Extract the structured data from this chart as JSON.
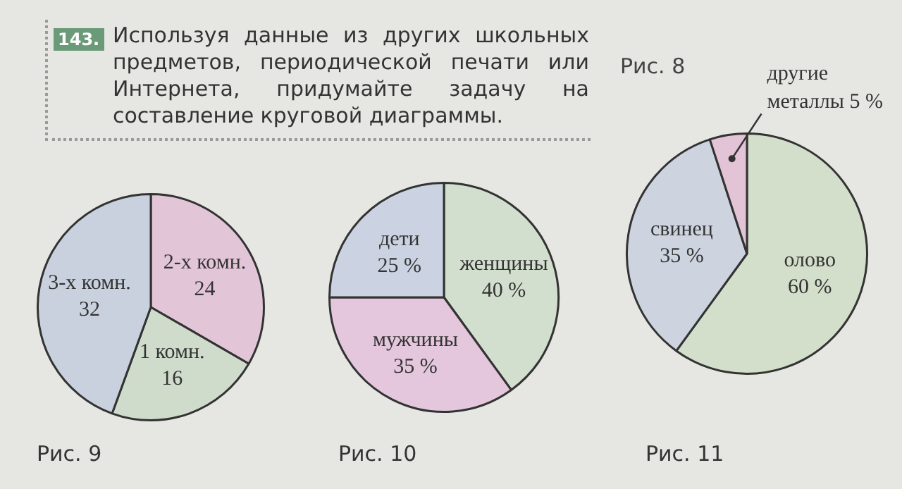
{
  "chart_data": [
    {
      "type": "other",
      "annotations": [
        "143.",
        "Используя данные из других школьных предметов, периодической печати или Интернета, придумайте задачу на составление круговой диаграммы.",
        "Рис. 8"
      ]
    },
    {
      "type": "pie",
      "title": "Рис. 9",
      "categories": [
        "2-х комн.",
        "1 комн.",
        "3-х комн."
      ],
      "values": [
        24,
        16,
        32
      ],
      "colors": [
        "#e2c6d8",
        "#cfdccb",
        "#c9d0de"
      ],
      "data_labels": true,
      "legend": false
    },
    {
      "type": "pie",
      "title": "Рис. 10",
      "categories": [
        "женщины",
        "мужчины",
        "дети"
      ],
      "values": [
        40,
        35,
        25
      ],
      "colors": [
        "#d3dfce",
        "#e4c7dc",
        "#cbd3e2"
      ],
      "value_labels": [
        "40 %",
        "35 %",
        "25 %"
      ],
      "legend": false
    },
    {
      "type": "pie",
      "title": "Рис. 11",
      "categories": [
        "олово",
        "свинец",
        "другие металлы"
      ],
      "values": [
        60,
        35,
        5
      ],
      "colors": [
        "#d3dfcb",
        "#cdd4e0",
        "#e2c4d6"
      ],
      "value_labels": [
        "60 %",
        "35 %",
        "5 %"
      ],
      "legend": false
    }
  ]
}
